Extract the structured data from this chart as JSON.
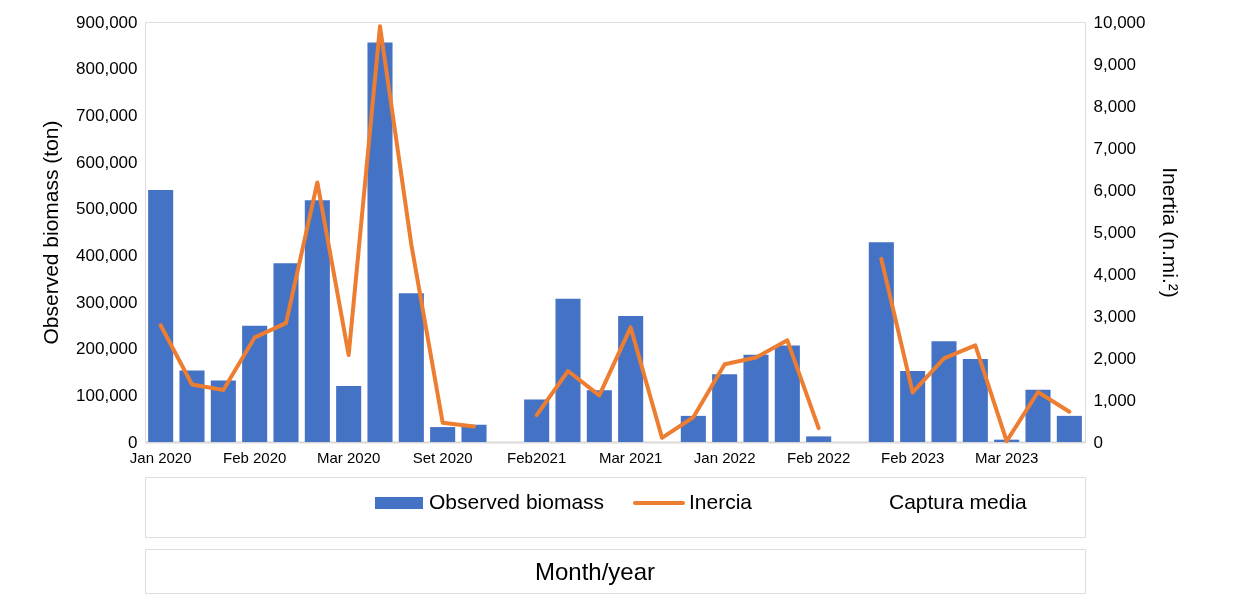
{
  "chart_data": {
    "type": "bar",
    "categories": [
      "Jan 2020",
      null,
      null,
      "Feb 2020",
      null,
      null,
      "Mar 2020",
      null,
      null,
      "Set 2020",
      null,
      null,
      "Feb2021",
      null,
      null,
      "Mar 2021",
      null,
      null,
      "Jan 2022",
      null,
      null,
      "Feb 2022",
      null,
      null,
      "Feb 2023",
      null,
      null,
      "Mar 2023",
      null,
      null
    ],
    "series": [
      {
        "name": "Observed biomass",
        "color": "#4472c4",
        "values": [
          540000,
          153000,
          132000,
          249000,
          383000,
          518000,
          120000,
          856000,
          319000,
          32000,
          37000,
          null,
          91000,
          307000,
          111000,
          270000,
          null,
          56000,
          145000,
          187000,
          207000,
          12000,
          null,
          428000,
          152000,
          216000,
          178000,
          5000,
          112000,
          56000
        ]
      },
      {
        "name": "Inercia",
        "type": "line",
        "axis": "y2",
        "color": "#ed7d31",
        "values": [
          2780,
          1370,
          1240,
          2490,
          2830,
          6180,
          2070,
          9900,
          4700,
          460,
          370,
          null,
          640,
          1690,
          1110,
          2730,
          100,
          590,
          1850,
          2010,
          2420,
          330,
          null,
          4360,
          1180,
          1990,
          2300,
          20,
          1190,
          720
        ]
      },
      {
        "name": "Captura media",
        "type": "line",
        "axis": "y2",
        "values": [
          null,
          null,
          null,
          null,
          null,
          null,
          null,
          null,
          null,
          null,
          null,
          null,
          null,
          null,
          null,
          null,
          null,
          null,
          null,
          null,
          null,
          null,
          null,
          null,
          null,
          null,
          null,
          null,
          null,
          null
        ]
      }
    ],
    "xlabel": "Month/year",
    "ylabel": "Observed biomass (ton)",
    "y2label": "Inertia (n.mi.²)",
    "ylim": [
      0,
      900000
    ],
    "yticks": [
      0,
      {
        "value": 100000,
        "label": "100,000"
      },
      {
        "value": 200000,
        "label": "200,000"
      },
      {
        "value": 300000,
        "label": "300,000"
      },
      {
        "value": 400000,
        "label": "400,000"
      },
      {
        "value": 500000,
        "label": "500,000"
      },
      {
        "value": 600000,
        "label": "600,000"
      },
      {
        "value": 700000,
        "label": "700,000"
      },
      {
        "value": 800000,
        "label": "800,000"
      },
      {
        "value": 900000,
        "label": "900,000"
      }
    ],
    "y2lim": [
      0,
      10000
    ],
    "y2ticks": [
      0,
      {
        "value": 1000,
        "label": "1,000"
      },
      {
        "value": 2000,
        "label": "2,000"
      },
      {
        "value": 3000,
        "label": "3,000"
      },
      {
        "value": 4000,
        "label": "4,000"
      },
      {
        "value": 5000,
        "label": "5,000"
      },
      {
        "value": 6000,
        "label": "6,000"
      },
      {
        "value": 7000,
        "label": "7,000"
      },
      {
        "value": 8000,
        "label": "8,000"
      },
      {
        "value": 9000,
        "label": "9,000"
      },
      {
        "value": 10000,
        "label": "10,000"
      }
    ],
    "grid": false,
    "legend": "bottom"
  }
}
